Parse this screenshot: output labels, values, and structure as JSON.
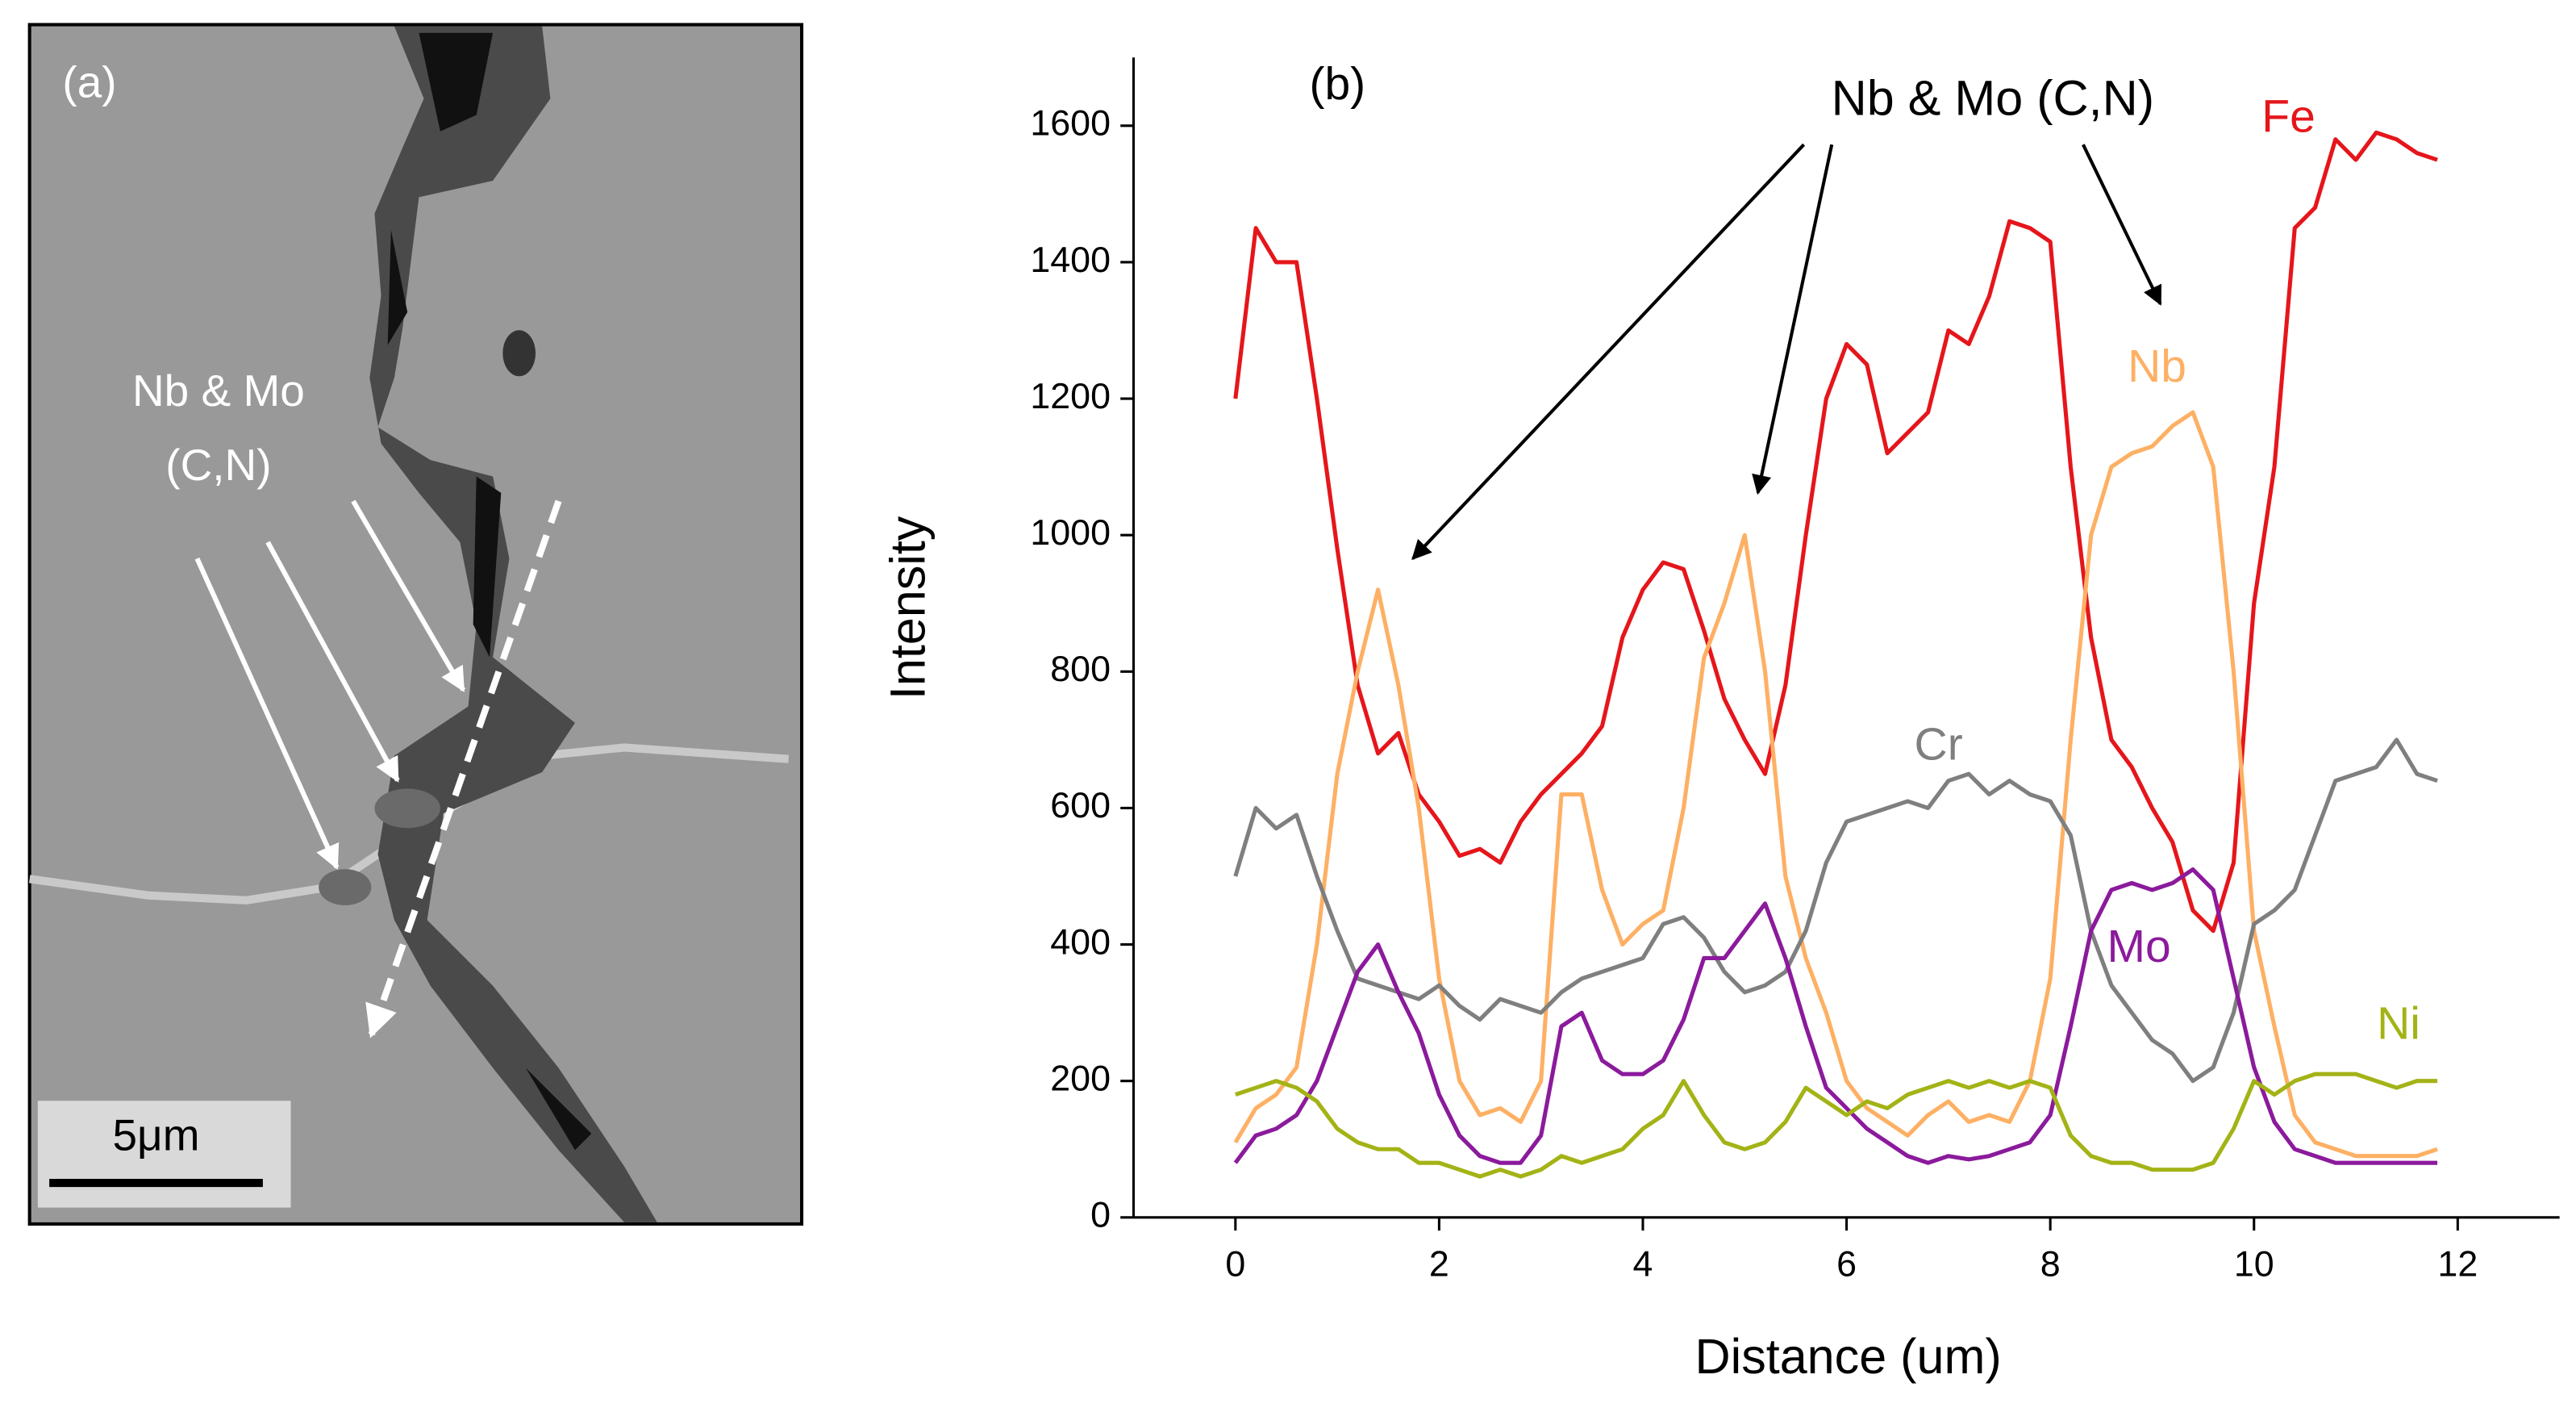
{
  "image_panel": {
    "label": "(a)",
    "annotation": [
      "Nb & Mo",
      "(C,N)"
    ],
    "scale_bar": "5μm"
  },
  "chart_data": {
    "type": "line",
    "panel_label": "(b)",
    "annotation": "Nb & Mo (C,N)",
    "xlabel": "Distance (um)",
    "ylabel": "Intensity",
    "xlim": [
      -1,
      13
    ],
    "ylim": [
      0,
      1700
    ],
    "xticks": [
      0,
      2,
      4,
      6,
      8,
      10,
      12
    ],
    "yticks": [
      0,
      200,
      400,
      600,
      800,
      1000,
      1200,
      1400,
      1600
    ],
    "x": [
      0,
      0.2,
      0.4,
      0.6,
      0.8,
      1.0,
      1.2,
      1.4,
      1.6,
      1.8,
      2.0,
      2.2,
      2.4,
      2.6,
      2.8,
      3.0,
      3.2,
      3.4,
      3.6,
      3.8,
      4.0,
      4.2,
      4.4,
      4.6,
      4.8,
      5.0,
      5.2,
      5.4,
      5.6,
      5.8,
      6.0,
      6.2,
      6.4,
      6.6,
      6.8,
      7.0,
      7.2,
      7.4,
      7.6,
      7.8,
      8.0,
      8.2,
      8.4,
      8.6,
      8.8,
      9.0,
      9.2,
      9.4,
      9.6,
      9.8,
      10.0,
      10.2,
      10.4,
      10.6,
      10.8,
      11.0,
      11.2,
      11.4,
      11.6,
      11.8
    ],
    "series": [
      {
        "name": "Fe",
        "color": "#e5161b",
        "values": [
          1200,
          1450,
          1400,
          1400,
          1200,
          980,
          780,
          680,
          710,
          620,
          580,
          530,
          540,
          520,
          580,
          620,
          650,
          680,
          720,
          850,
          920,
          960,
          950,
          860,
          760,
          700,
          650,
          780,
          1000,
          1200,
          1280,
          1250,
          1120,
          1150,
          1180,
          1300,
          1280,
          1350,
          1460,
          1450,
          1430,
          1100,
          850,
          700,
          660,
          600,
          550,
          450,
          420,
          520,
          900,
          1100,
          1450,
          1480,
          1580,
          1550,
          1590,
          1580,
          1560,
          1550
        ]
      },
      {
        "name": "Nb",
        "color": "#fdb064",
        "values": [
          110,
          160,
          180,
          220,
          400,
          650,
          800,
          920,
          780,
          600,
          350,
          200,
          150,
          160,
          140,
          200,
          620,
          620,
          480,
          400,
          430,
          450,
          600,
          820,
          900,
          1000,
          800,
          500,
          380,
          300,
          200,
          160,
          140,
          120,
          150,
          170,
          140,
          150,
          140,
          200,
          350,
          700,
          1000,
          1100,
          1120,
          1130,
          1160,
          1180,
          1100,
          800,
          420,
          280,
          150,
          110,
          100,
          90,
          90,
          90,
          90,
          100
        ]
      },
      {
        "name": "Cr",
        "color": "#7f7f7f",
        "values": [
          500,
          600,
          570,
          590,
          500,
          420,
          350,
          340,
          330,
          320,
          340,
          310,
          290,
          320,
          310,
          300,
          330,
          350,
          360,
          370,
          380,
          430,
          440,
          410,
          360,
          330,
          340,
          360,
          420,
          520,
          580,
          590,
          600,
          610,
          600,
          640,
          650,
          620,
          640,
          620,
          610,
          560,
          420,
          340,
          300,
          260,
          240,
          200,
          220,
          300,
          430,
          450,
          480,
          560,
          640,
          650,
          660,
          700,
          650,
          640
        ]
      },
      {
        "name": "Mo",
        "color": "#8b1a9c",
        "values": [
          80,
          120,
          130,
          150,
          200,
          280,
          360,
          400,
          330,
          270,
          180,
          120,
          90,
          80,
          80,
          120,
          280,
          300,
          230,
          210,
          210,
          230,
          290,
          380,
          380,
          420,
          460,
          380,
          280,
          190,
          160,
          130,
          110,
          90,
          80,
          90,
          85,
          90,
          100,
          110,
          150,
          280,
          420,
          480,
          490,
          480,
          490,
          510,
          480,
          350,
          220,
          140,
          100,
          90,
          80,
          80,
          80,
          80,
          80,
          80
        ]
      },
      {
        "name": "Ni",
        "color": "#a3b316",
        "values": [
          180,
          190,
          200,
          190,
          170,
          130,
          110,
          100,
          100,
          80,
          80,
          70,
          60,
          70,
          60,
          70,
          90,
          80,
          90,
          100,
          130,
          150,
          200,
          150,
          110,
          100,
          110,
          140,
          190,
          170,
          150,
          170,
          160,
          180,
          190,
          200,
          190,
          200,
          190,
          200,
          190,
          120,
          90,
          80,
          80,
          70,
          70,
          70,
          80,
          130,
          200,
          180,
          200,
          210,
          210,
          210,
          200,
          190,
          200,
          200
        ]
      }
    ]
  }
}
